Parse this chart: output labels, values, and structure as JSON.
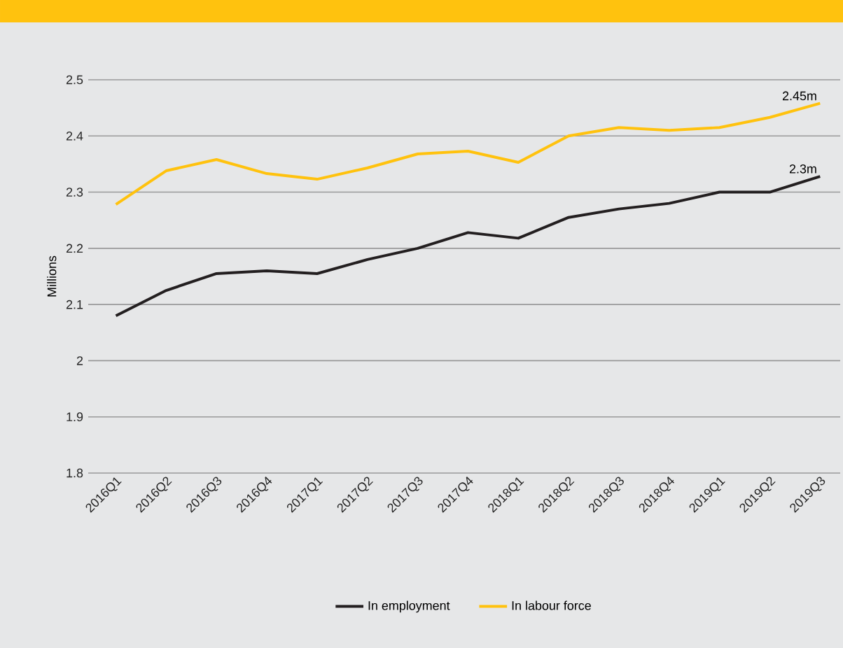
{
  "chart_data": {
    "type": "line",
    "ylabel": "Millions",
    "categories": [
      "2016Q1",
      "2016Q2",
      "2016Q3",
      "2016Q4",
      "2017Q1",
      "2017Q2",
      "2017Q3",
      "2017Q4",
      "2018Q1",
      "2018Q2",
      "2018Q3",
      "2018Q4",
      "2019Q1",
      "2019Q2",
      "2019Q3"
    ],
    "series": [
      {
        "name": "In employment",
        "color": "#231f20",
        "values": [
          2.08,
          2.125,
          2.155,
          2.16,
          2.155,
          2.18,
          2.2,
          2.228,
          2.218,
          2.255,
          2.27,
          2.28,
          2.3,
          2.3,
          2.328
        ]
      },
      {
        "name": "In labour force",
        "color": "#ffc20e",
        "values": [
          2.278,
          2.338,
          2.358,
          2.333,
          2.323,
          2.343,
          2.368,
          2.373,
          2.353,
          2.4,
          2.415,
          2.41,
          2.415,
          2.433,
          2.458
        ]
      }
    ],
    "ylim": [
      1.8,
      2.5
    ],
    "yticks": [
      1.8,
      1.9,
      2,
      2.1,
      2.2,
      2.3,
      2.4,
      2.5
    ],
    "grid": "y",
    "legend": "bottom",
    "marker": "none",
    "line_style": "solid",
    "annotations": [
      {
        "text": "2.45m",
        "x": "2019Q3",
        "y": 2.458
      },
      {
        "text": "2.3m",
        "x": "2019Q3",
        "y": 2.328
      }
    ]
  }
}
